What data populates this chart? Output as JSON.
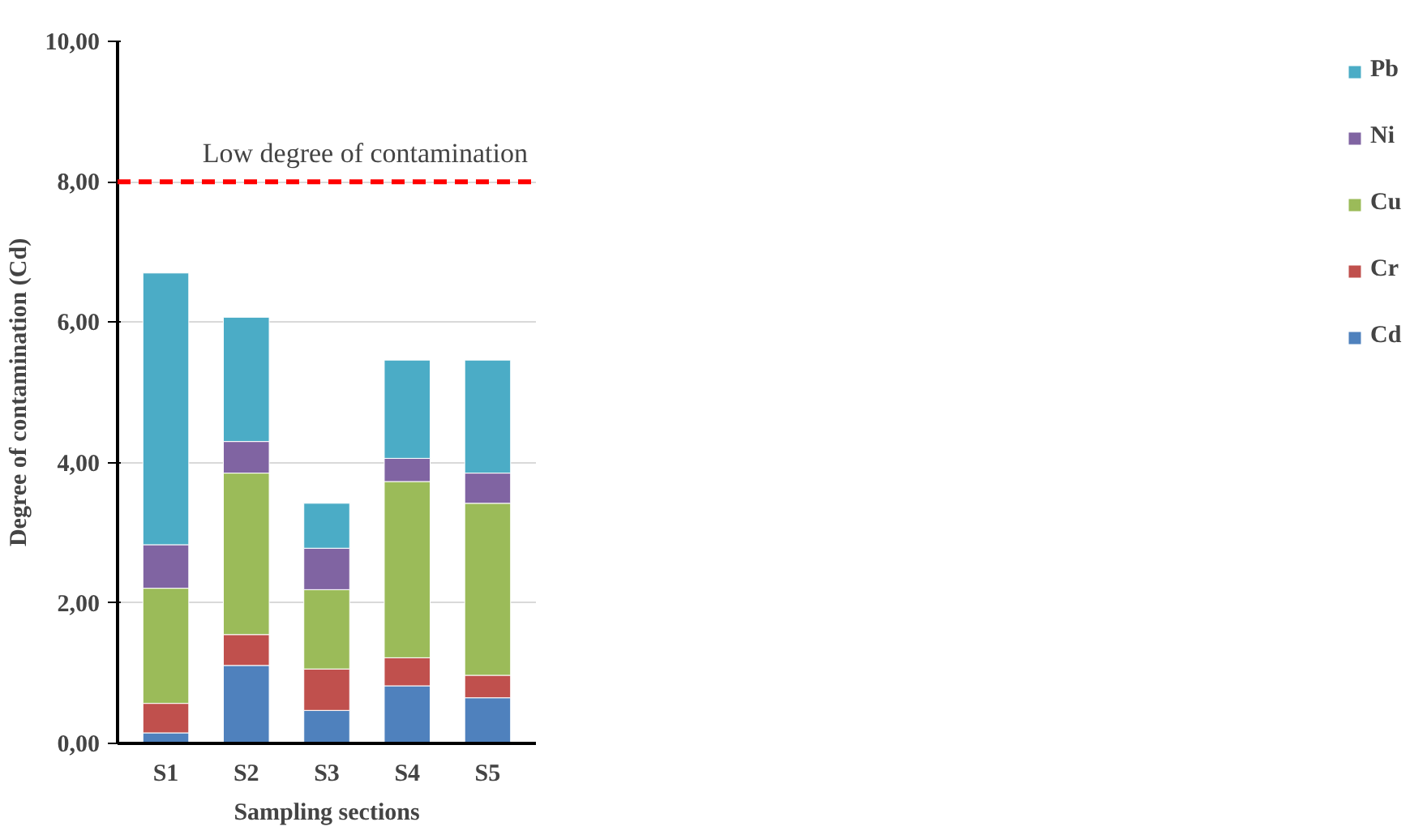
{
  "chart_data": {
    "type": "bar",
    "stacked": true,
    "xlabel": "Sampling sections",
    "ylabel": "Degree of contamination (Cd)",
    "categories": [
      "S1",
      "S2",
      "S3",
      "S4",
      "S5"
    ],
    "series": [
      {
        "name": "Cd",
        "color": "#4f81bd",
        "values": [
          0.15,
          1.11,
          0.47,
          0.82,
          0.65
        ]
      },
      {
        "name": "Cr",
        "color": "#c0504d",
        "values": [
          0.42,
          0.44,
          0.59,
          0.4,
          0.32
        ]
      },
      {
        "name": "Cu",
        "color": "#9bbb59",
        "values": [
          1.64,
          2.3,
          1.13,
          2.51,
          2.45
        ]
      },
      {
        "name": "Ni",
        "color": "#8064a2",
        "values": [
          0.62,
          0.45,
          0.59,
          0.33,
          0.43
        ]
      },
      {
        "name": "Pb",
        "color": "#4bacc6",
        "values": [
          3.87,
          1.77,
          0.64,
          1.4,
          1.61
        ]
      }
    ],
    "ylim": [
      0,
      10
    ],
    "yticks": [
      {
        "value": 0,
        "label": "0,00"
      },
      {
        "value": 2,
        "label": "2,00"
      },
      {
        "value": 4,
        "label": "4,00"
      },
      {
        "value": 6,
        "label": "6,00"
      },
      {
        "value": 8,
        "label": "8,00"
      },
      {
        "value": 10,
        "label": "10,00"
      }
    ],
    "ref_lines": [
      {
        "axis": "y",
        "value": 8,
        "label": "Low degree of contamination",
        "color": "#ff0000",
        "line_style": "dashed"
      }
    ],
    "grid": "y",
    "legend": "right"
  }
}
